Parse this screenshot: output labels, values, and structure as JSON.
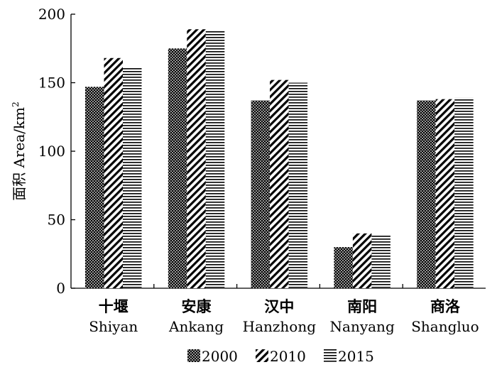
{
  "chart_data": {
    "type": "bar",
    "title": "",
    "ylabel": "面积 Area/km",
    "ylabel_superscript": "2",
    "xlabel": "",
    "ylim": [
      0,
      200
    ],
    "yticks": [
      0,
      50,
      100,
      150,
      200
    ],
    "categories": [
      {
        "cn": "十堰",
        "en": "Shiyan"
      },
      {
        "cn": "安康",
        "en": "Ankang"
      },
      {
        "cn": "汉中",
        "en": "Hanzhong"
      },
      {
        "cn": "南阳",
        "en": "Nanyang"
      },
      {
        "cn": "商洛",
        "en": "Shangluo"
      }
    ],
    "series": [
      {
        "name": "2000",
        "pattern": "dots",
        "values": [
          147,
          175,
          137,
          30,
          137
        ]
      },
      {
        "name": "2010",
        "pattern": "diagonal",
        "values": [
          168,
          189,
          152,
          40,
          138
        ]
      },
      {
        "name": "2015",
        "pattern": "horizontal",
        "values": [
          161,
          188,
          150,
          39,
          139
        ]
      }
    ],
    "legend_position": "bottom",
    "grid": false
  }
}
